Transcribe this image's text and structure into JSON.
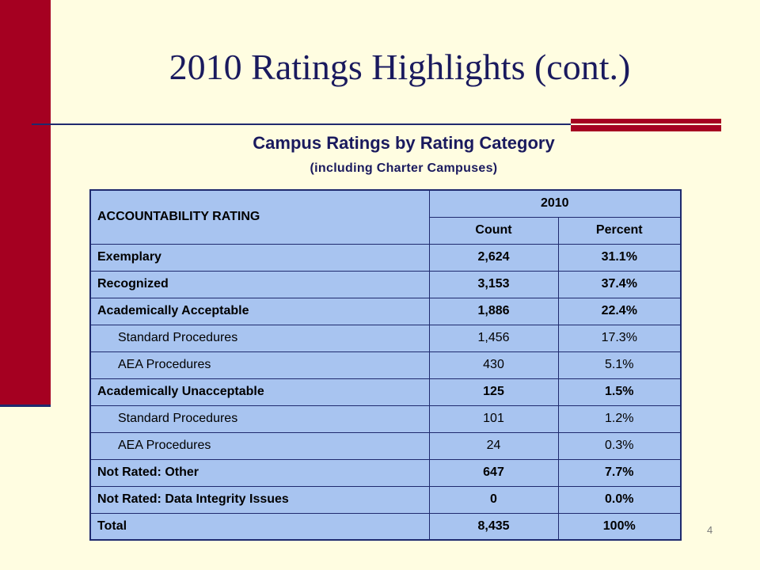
{
  "slide": {
    "title": "2010 Ratings Highlights (cont.)",
    "number": "4"
  },
  "table": {
    "title": "Campus Ratings by Rating Category",
    "subtitle": "(including Charter Campuses)",
    "header": {
      "rating_label": "ACCOUNTABILITY RATING",
      "year": "2010",
      "count_label": "Count",
      "percent_label": "Percent"
    },
    "rows": [
      {
        "label": "Exemplary",
        "count": "2,624",
        "percent": "31.1%",
        "bold": true
      },
      {
        "label": "Recognized",
        "count": "3,153",
        "percent": "37.4%",
        "bold": true
      },
      {
        "label": "Academically Acceptable",
        "count": "1,886",
        "percent": "22.4%",
        "bold": true
      },
      {
        "label": "Standard Procedures",
        "count": "1,456",
        "percent": "17.3%",
        "bold": false
      },
      {
        "label": "AEA Procedures",
        "count": "430",
        "percent": "5.1%",
        "bold": false
      },
      {
        "label": "Academically Unacceptable",
        "count": "125",
        "percent": "1.5%",
        "bold": true
      },
      {
        "label": "Standard Procedures",
        "count": "101",
        "percent": "1.2%",
        "bold": false
      },
      {
        "label": "AEA Procedures",
        "count": "24",
        "percent": "0.3%",
        "bold": false
      },
      {
        "label": "Not Rated: Other",
        "count": "647",
        "percent": "7.7%",
        "bold": true
      },
      {
        "label": "Not Rated: Data Integrity Issues",
        "count": "0",
        "percent": "0.0%",
        "bold": true
      },
      {
        "label": "Total",
        "count": "8,435",
        "percent": "100%",
        "bold": true
      }
    ]
  },
  "colors": {
    "background": "#FFFDE1",
    "accent_red": "#A50021",
    "navy": "#1F2A6E",
    "table_fill": "#A8C4F0"
  }
}
